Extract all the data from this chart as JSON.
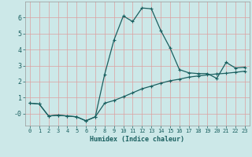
{
  "xlabel": "Humidex (Indice chaleur)",
  "bg_color": "#cce8e8",
  "line_color": "#1a6060",
  "grid_color": "#dda0a0",
  "xlim": [
    -0.5,
    23.5
  ],
  "ylim": [
    -0.75,
    7.0
  ],
  "xticks": [
    0,
    1,
    2,
    3,
    4,
    5,
    6,
    7,
    8,
    9,
    10,
    11,
    12,
    13,
    14,
    15,
    16,
    17,
    18,
    19,
    20,
    21,
    22,
    23
  ],
  "yticks": [
    0,
    1,
    2,
    3,
    4,
    5,
    6
  ],
  "ytick_labels": [
    "-0",
    "1",
    "2",
    "3",
    "4",
    "5",
    "6"
  ],
  "curve1_x": [
    0,
    1,
    2,
    3,
    4,
    5,
    6,
    7,
    8,
    9,
    10,
    11,
    12,
    13,
    14,
    15,
    16,
    17,
    18,
    19,
    20,
    21,
    22,
    23
  ],
  "curve1_y": [
    0.65,
    0.6,
    -0.15,
    -0.1,
    -0.15,
    -0.2,
    -0.45,
    -0.2,
    2.45,
    4.6,
    6.1,
    5.75,
    6.6,
    6.55,
    5.2,
    4.1,
    2.75,
    2.55,
    2.5,
    2.5,
    2.2,
    3.2,
    2.85,
    2.9
  ],
  "curve2_x": [
    0,
    1,
    2,
    3,
    4,
    5,
    6,
    7,
    8,
    9,
    10,
    11,
    12,
    13,
    14,
    15,
    16,
    17,
    18,
    19,
    20,
    21,
    22,
    23
  ],
  "curve2_y": [
    0.65,
    0.6,
    -0.15,
    -0.1,
    -0.15,
    -0.2,
    -0.45,
    -0.2,
    0.65,
    0.82,
    1.05,
    1.3,
    1.55,
    1.72,
    1.9,
    2.05,
    2.15,
    2.28,
    2.35,
    2.42,
    2.48,
    2.52,
    2.58,
    2.65
  ]
}
